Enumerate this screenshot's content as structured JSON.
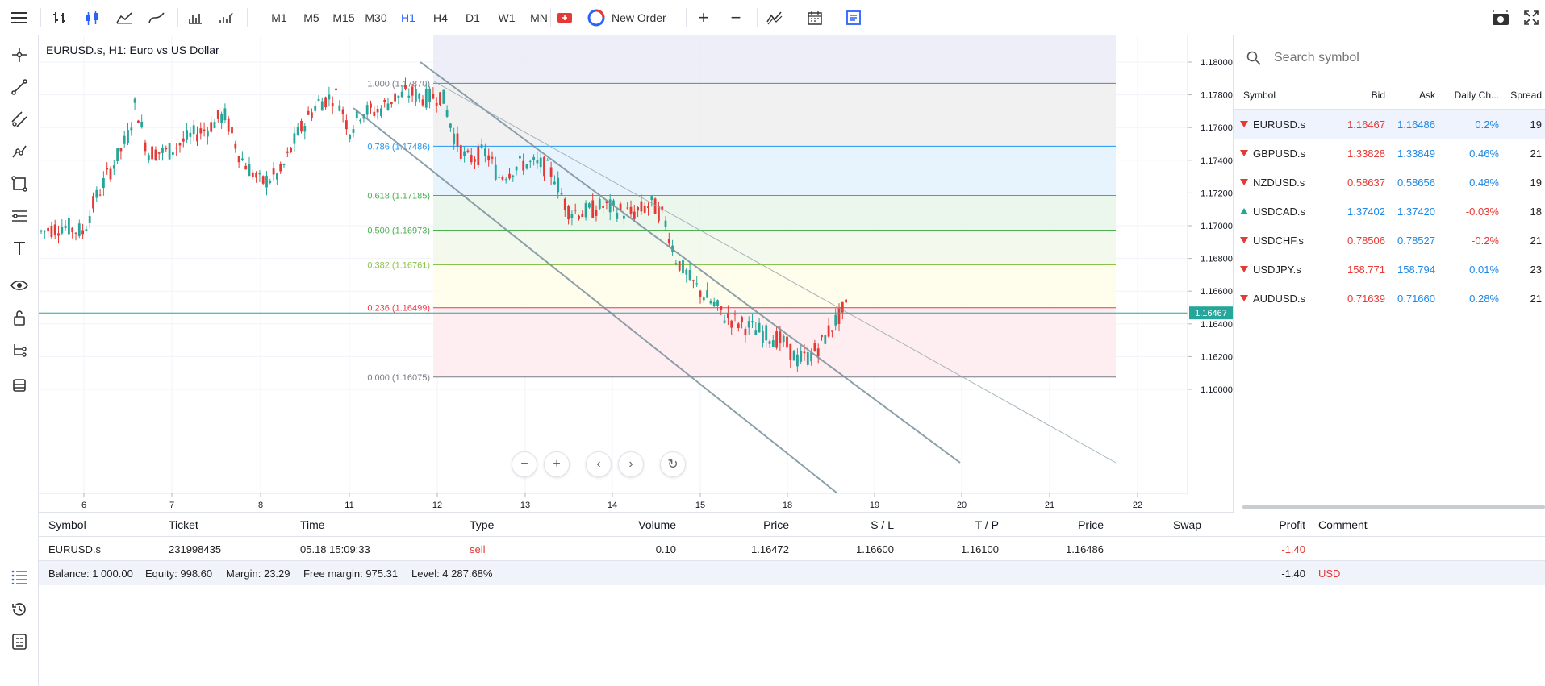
{
  "toolbar": {
    "timeframes": [
      "M1",
      "M5",
      "M15",
      "M30",
      "H1",
      "H4",
      "D1",
      "W1",
      "MN"
    ],
    "active_timeframe": "H1",
    "new_order_label": "New Order",
    "icons": [
      "menu-icon",
      "bar-chart-icon",
      "candlestick-icon",
      "area-chart-icon",
      "line-chart-icon",
      "volume-bars-icon",
      "histogram-icon",
      "fullscreen-trade-icon",
      "plus-icon",
      "minus-icon",
      "indicators-icon",
      "calendar-icon",
      "template-icon",
      "screenshot-icon",
      "fullscreen-icon"
    ]
  },
  "chart": {
    "title": "EURUSD.s, H1: Euro vs US Dollar",
    "price_ticks": [
      "1.18000",
      "1.17800",
      "1.17600",
      "1.17400",
      "1.17200",
      "1.17000",
      "1.16800",
      "1.16600",
      "1.16400",
      "1.16200",
      "1.16000"
    ],
    "date_ticks": [
      "6",
      "7",
      "8",
      "11",
      "12",
      "13",
      "14",
      "15",
      "18",
      "19",
      "20",
      "21",
      "22"
    ],
    "current_price": "1.16467",
    "current_price_color": "#26a69a",
    "fib_levels": [
      {
        "label": "1.000 (1.17870)",
        "color": "#787b86"
      },
      {
        "label": "0.786 (1.17486)",
        "color": "#2196f3"
      },
      {
        "label": "0.618 (1.17185)",
        "color": "#4caf50"
      },
      {
        "label": "0.500 (1.16973)",
        "color": "#4caf50"
      },
      {
        "label": "0.382 (1.16761)",
        "color": "#8bc34a"
      },
      {
        "label": "0.236 (1.16499)",
        "color": "#f23645"
      },
      {
        "label": "0.000 (1.16075)",
        "color": "#787b86"
      }
    ]
  },
  "symbols": {
    "search_placeholder": "Search symbol",
    "headers": {
      "symbol": "Symbol",
      "bid": "Bid",
      "ask": "Ask",
      "change": "Daily Ch...",
      "spread": "Spread"
    },
    "rows": [
      {
        "symbol": "EURUSD.s",
        "bid": "1.16467",
        "ask": "1.16486",
        "change": "0.2%",
        "spread": "19",
        "dir": "down"
      },
      {
        "symbol": "GBPUSD.s",
        "bid": "1.33828",
        "ask": "1.33849",
        "change": "0.46%",
        "spread": "21",
        "dir": "down"
      },
      {
        "symbol": "NZDUSD.s",
        "bid": "0.58637",
        "ask": "0.58656",
        "change": "0.48%",
        "spread": "19",
        "dir": "down"
      },
      {
        "symbol": "USDCAD.s",
        "bid": "1.37402",
        "ask": "1.37420",
        "change": "-0.03%",
        "spread": "18",
        "dir": "up"
      },
      {
        "symbol": "USDCHF.s",
        "bid": "0.78506",
        "ask": "0.78527",
        "change": "-0.2%",
        "spread": "21",
        "dir": "down"
      },
      {
        "symbol": "USDJPY.s",
        "bid": "158.771",
        "ask": "158.794",
        "change": "0.01%",
        "spread": "23",
        "dir": "down"
      },
      {
        "symbol": "AUDUSD.s",
        "bid": "0.71639",
        "ask": "0.71660",
        "change": "0.28%",
        "spread": "21",
        "dir": "down"
      }
    ]
  },
  "positions": {
    "headers": {
      "symbol": "Symbol",
      "ticket": "Ticket",
      "time": "Time",
      "type": "Type",
      "volume": "Volume",
      "price": "Price",
      "sl": "S / L",
      "tp": "T / P",
      "price2": "Price",
      "swap": "Swap",
      "profit": "Profit",
      "comment": "Comment"
    },
    "row": {
      "symbol": "EURUSD.s",
      "ticket": "231998435",
      "time": "05.18 15:09:33",
      "type": "sell",
      "volume": "0.10",
      "price": "1.16472",
      "sl": "1.16600",
      "tp": "1.16100",
      "price2": "1.16486",
      "swap": "",
      "profit": "-1.40",
      "comment": ""
    },
    "summary": {
      "balance": "Balance: 1 000.00",
      "equity": "Equity: 998.60",
      "margin": "Margin: 23.29",
      "free_margin": "Free margin: 975.31",
      "level": "Level: 4 287.68%",
      "profit": "-1.40",
      "currency": "USD"
    }
  },
  "colors": {
    "accent": "#2962ff",
    "down": "#e53935",
    "up": "#26a69a",
    "teal_line": "#78909c"
  }
}
